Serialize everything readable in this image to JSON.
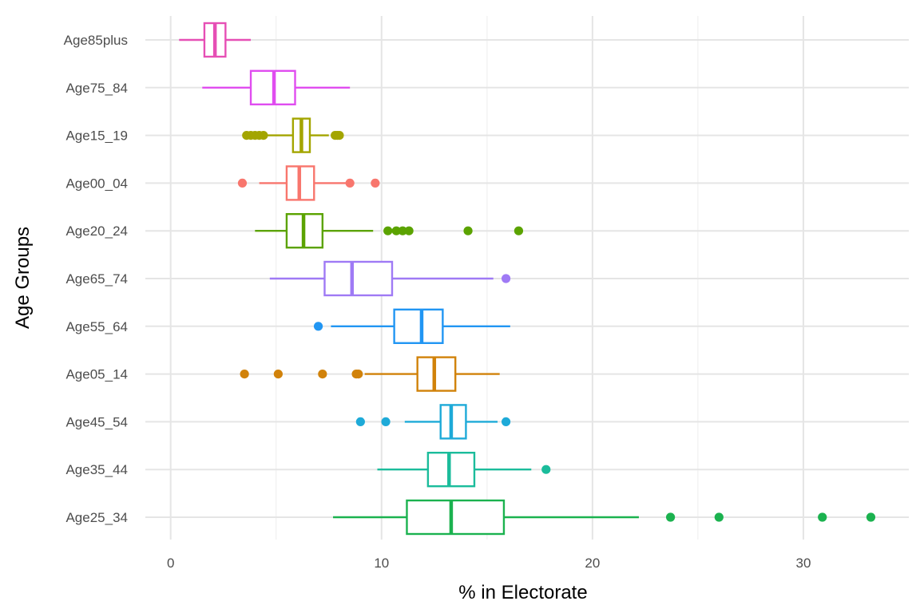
{
  "chart_data": {
    "type": "boxplot",
    "orientation": "horizontal",
    "xlabel": "% in Electorate",
    "ylabel": "Age Groups",
    "xlim": [
      -1.2,
      35
    ],
    "x_ticks": [
      0,
      10,
      20,
      30
    ],
    "x_tick_labels": [
      "0",
      "10",
      "20",
      "30"
    ],
    "grid": true,
    "legend": "none",
    "categories": [
      "Age85plus",
      "Age75_84",
      "Age15_19",
      "Age00_04",
      "Age20_24",
      "Age65_74",
      "Age55_64",
      "Age05_14",
      "Age45_54",
      "Age35_44",
      "Age25_34"
    ],
    "series": [
      {
        "name": "Age85plus",
        "color": "#E64FB5",
        "whisker_low": 0.4,
        "q1": 1.6,
        "median": 2.1,
        "q3": 2.6,
        "whisker_high": 3.8,
        "outliers": []
      },
      {
        "name": "Age75_84",
        "color": "#E04DF0",
        "whisker_low": 1.5,
        "q1": 3.8,
        "median": 4.9,
        "q3": 5.9,
        "whisker_high": 8.5,
        "outliers": []
      },
      {
        "name": "Age15_19",
        "color": "#A3A500",
        "whisker_low": 4.5,
        "q1": 5.8,
        "median": 6.2,
        "q3": 6.6,
        "whisker_high": 7.5,
        "outliers": [
          3.6,
          3.8,
          4.0,
          4.2,
          4.4,
          7.8,
          7.9,
          8.0
        ]
      },
      {
        "name": "Age00_04",
        "color": "#F8766D",
        "whisker_low": 4.2,
        "q1": 5.5,
        "median": 6.1,
        "q3": 6.8,
        "whisker_high": 8.3,
        "outliers": [
          3.4,
          8.5,
          9.7
        ]
      },
      {
        "name": "Age20_24",
        "color": "#5BA300",
        "whisker_low": 4.0,
        "q1": 5.5,
        "median": 6.3,
        "q3": 7.2,
        "whisker_high": 9.6,
        "outliers": [
          10.3,
          10.7,
          11.0,
          11.3,
          14.1,
          16.5
        ]
      },
      {
        "name": "Age65_74",
        "color": "#9F7AF5",
        "whisker_low": 4.7,
        "q1": 7.3,
        "median": 8.6,
        "q3": 10.5,
        "whisker_high": 15.3,
        "outliers": [
          15.9
        ]
      },
      {
        "name": "Age55_64",
        "color": "#2196F3",
        "whisker_low": 7.6,
        "q1": 10.6,
        "median": 11.9,
        "q3": 12.9,
        "whisker_high": 16.1,
        "outliers": [
          7.0
        ]
      },
      {
        "name": "Age05_14",
        "color": "#D1820A",
        "whisker_low": 9.2,
        "q1": 11.7,
        "median": 12.5,
        "q3": 13.5,
        "whisker_high": 15.6,
        "outliers": [
          3.5,
          5.1,
          7.2,
          8.8,
          8.9
        ]
      },
      {
        "name": "Age45_54",
        "color": "#1EAAD8",
        "whisker_low": 11.1,
        "q1": 12.8,
        "median": 13.3,
        "q3": 14.0,
        "whisker_high": 15.5,
        "outliers": [
          9.0,
          10.2,
          15.9
        ]
      },
      {
        "name": "Age35_44",
        "color": "#1BBC9B",
        "whisker_low": 9.8,
        "q1": 12.2,
        "median": 13.2,
        "q3": 14.4,
        "whisker_high": 17.1,
        "outliers": [
          17.8
        ]
      },
      {
        "name": "Age25_34",
        "color": "#1BB24F",
        "whisker_low": 7.7,
        "q1": 11.2,
        "median": 13.3,
        "q3": 15.8,
        "whisker_high": 22.2,
        "outliers": [
          23.7,
          26.0,
          30.9,
          33.2
        ]
      }
    ]
  }
}
